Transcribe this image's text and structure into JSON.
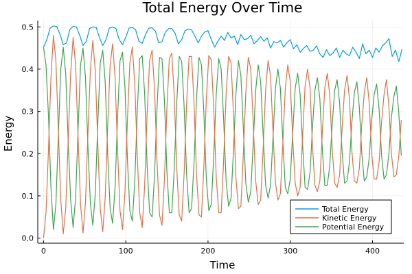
{
  "chart_data": {
    "type": "line",
    "title": "Total Energy Over Time",
    "xlabel": "Time",
    "ylabel": "Energy",
    "xlim": [
      -7,
      438
    ],
    "ylim": [
      -0.012,
      0.515
    ],
    "x_ticks": [
      0,
      100,
      200,
      300,
      400
    ],
    "x_tick_labels": [
      "0",
      "100",
      "200",
      "300",
      "400"
    ],
    "y_ticks": [
      0.0,
      0.1,
      0.2,
      0.3,
      0.4,
      0.5
    ],
    "y_tick_labels": [
      "0.0",
      "0.1",
      "0.2",
      "0.3",
      "0.4",
      "0.5"
    ],
    "grid": true,
    "legend_position": "bottom-right",
    "series": [
      {
        "name": "Total Energy",
        "color": "#009AFA",
        "x": [
          0,
          4,
          8,
          12,
          16,
          20,
          24,
          28,
          32,
          36,
          40,
          44,
          48,
          52,
          56,
          60,
          64,
          68,
          72,
          76,
          80,
          84,
          88,
          92,
          96,
          100,
          104,
          108,
          112,
          116,
          120,
          124,
          128,
          132,
          136,
          140,
          144,
          148,
          152,
          156,
          160,
          164,
          168,
          172,
          176,
          180,
          184,
          188,
          192,
          196,
          200,
          204,
          208,
          212,
          216,
          220,
          224,
          228,
          232,
          236,
          240,
          244,
          248,
          252,
          256,
          260,
          264,
          268,
          272,
          276,
          280,
          284,
          288,
          292,
          296,
          300,
          304,
          308,
          312,
          316,
          320,
          324,
          328,
          332,
          336,
          340,
          344,
          348,
          352,
          356,
          360,
          364,
          368,
          372,
          376,
          380,
          384,
          388,
          392,
          396,
          400,
          404,
          408,
          412,
          416,
          420,
          424,
          428,
          432,
          436
        ],
        "y": [
          0.452,
          0.47,
          0.497,
          0.502,
          0.501,
          0.483,
          0.458,
          0.462,
          0.494,
          0.501,
          0.5,
          0.48,
          0.456,
          0.466,
          0.496,
          0.5,
          0.499,
          0.475,
          0.456,
          0.47,
          0.497,
          0.5,
          0.496,
          0.47,
          0.458,
          0.476,
          0.497,
          0.499,
          0.493,
          0.466,
          0.461,
          0.482,
          0.497,
          0.498,
          0.49,
          0.462,
          0.465,
          0.487,
          0.496,
          0.496,
          0.485,
          0.46,
          0.47,
          0.491,
          0.495,
          0.493,
          0.478,
          0.462,
          0.478,
          0.488,
          0.491,
          0.47,
          0.452,
          0.466,
          0.478,
          0.468,
          0.487,
          0.474,
          0.478,
          0.458,
          0.482,
          0.47,
          0.472,
          0.48,
          0.46,
          0.468,
          0.477,
          0.466,
          0.474,
          0.45,
          0.465,
          0.462,
          0.468,
          0.452,
          0.463,
          0.47,
          0.448,
          0.458,
          0.44,
          0.449,
          0.456,
          0.442,
          0.445,
          0.455,
          0.436,
          0.428,
          0.446,
          0.432,
          0.438,
          0.45,
          0.428,
          0.445,
          0.436,
          0.432,
          0.452,
          0.44,
          0.425,
          0.46,
          0.436,
          0.445,
          0.428,
          0.45,
          0.44,
          0.455,
          0.462,
          0.472,
          0.43,
          0.445,
          0.418,
          0.448
        ]
      },
      {
        "name": "Kinetic Energy",
        "color": "#E26F46",
        "x": [
          0,
          3,
          6,
          9,
          12,
          15,
          18,
          21,
          24,
          27,
          30,
          33,
          36,
          39,
          42,
          45,
          48,
          51,
          54,
          57,
          60,
          63,
          66,
          69,
          72,
          75,
          78,
          81,
          84,
          87,
          90,
          93,
          96,
          99,
          102,
          105,
          108,
          111,
          114,
          117,
          120,
          123,
          126,
          129,
          132,
          135,
          138,
          141,
          144,
          147,
          150,
          153,
          156,
          159,
          162,
          165,
          168,
          171,
          174,
          177,
          180,
          183,
          186,
          189,
          192,
          195,
          198,
          201,
          204,
          207,
          210,
          213,
          216,
          219,
          222,
          225,
          228,
          231,
          234,
          237,
          240,
          243,
          246,
          249,
          252,
          255,
          258,
          261,
          264,
          267,
          270,
          273,
          276,
          279,
          282,
          285,
          288,
          291,
          294,
          297,
          300,
          303,
          306,
          309,
          312,
          315,
          318,
          321,
          324,
          327,
          330,
          333,
          336,
          339,
          342,
          345,
          348,
          351,
          354,
          357,
          360,
          363,
          366,
          369,
          372,
          375,
          378,
          381,
          384,
          387,
          390,
          393,
          396,
          399,
          402,
          405,
          408,
          411,
          414,
          417,
          420,
          423,
          426,
          429,
          432,
          435
        ],
        "y": [
          0.0,
          0.06,
          0.21,
          0.38,
          0.48,
          0.42,
          0.26,
          0.09,
          0.01,
          0.07,
          0.23,
          0.39,
          0.475,
          0.41,
          0.24,
          0.08,
          0.012,
          0.085,
          0.25,
          0.4,
          0.468,
          0.395,
          0.225,
          0.07,
          0.015,
          0.095,
          0.265,
          0.41,
          0.46,
          0.38,
          0.21,
          0.065,
          0.02,
          0.11,
          0.28,
          0.415,
          0.452,
          0.365,
          0.195,
          0.06,
          0.025,
          0.125,
          0.295,
          0.42,
          0.445,
          0.35,
          0.18,
          0.055,
          0.03,
          0.14,
          0.305,
          0.425,
          0.438,
          0.335,
          0.165,
          0.055,
          0.04,
          0.155,
          0.32,
          0.43,
          0.43,
          0.32,
          0.15,
          0.055,
          0.05,
          0.17,
          0.33,
          0.432,
          0.422,
          0.305,
          0.145,
          0.06,
          0.06,
          0.185,
          0.34,
          0.43,
          0.415,
          0.29,
          0.14,
          0.07,
          0.075,
          0.2,
          0.345,
          0.428,
          0.4,
          0.27,
          0.135,
          0.08,
          0.09,
          0.21,
          0.35,
          0.42,
          0.385,
          0.25,
          0.13,
          0.09,
          0.105,
          0.225,
          0.355,
          0.41,
          0.37,
          0.235,
          0.13,
          0.1,
          0.12,
          0.24,
          0.36,
          0.4,
          0.355,
          0.22,
          0.125,
          0.11,
          0.135,
          0.25,
          0.355,
          0.39,
          0.34,
          0.21,
          0.13,
          0.12,
          0.15,
          0.26,
          0.35,
          0.385,
          0.33,
          0.205,
          0.135,
          0.13,
          0.165,
          0.27,
          0.345,
          0.38,
          0.32,
          0.2,
          0.14,
          0.14,
          0.18,
          0.275,
          0.34,
          0.375,
          0.31,
          0.2,
          0.145,
          0.15,
          0.195,
          0.28
        ]
      },
      {
        "name": "Potential Energy",
        "color": "#3DA44D",
        "x": [
          0,
          3,
          6,
          9,
          12,
          15,
          18,
          21,
          24,
          27,
          30,
          33,
          36,
          39,
          42,
          45,
          48,
          51,
          54,
          57,
          60,
          63,
          66,
          69,
          72,
          75,
          78,
          81,
          84,
          87,
          90,
          93,
          96,
          99,
          102,
          105,
          108,
          111,
          114,
          117,
          120,
          123,
          126,
          129,
          132,
          135,
          138,
          141,
          144,
          147,
          150,
          153,
          156,
          159,
          162,
          165,
          168,
          171,
          174,
          177,
          180,
          183,
          186,
          189,
          192,
          195,
          198,
          201,
          204,
          207,
          210,
          213,
          216,
          219,
          222,
          225,
          228,
          231,
          234,
          237,
          240,
          243,
          246,
          249,
          252,
          255,
          258,
          261,
          264,
          267,
          270,
          273,
          276,
          279,
          282,
          285,
          288,
          291,
          294,
          297,
          300,
          303,
          306,
          309,
          312,
          315,
          318,
          321,
          324,
          327,
          330,
          333,
          336,
          339,
          342,
          345,
          348,
          351,
          354,
          357,
          360,
          363,
          366,
          369,
          372,
          375,
          378,
          381,
          384,
          387,
          390,
          393,
          396,
          399,
          402,
          405,
          408,
          411,
          414,
          417,
          420,
          423,
          426,
          429,
          432,
          435
        ],
        "y": [
          0.452,
          0.41,
          0.29,
          0.12,
          0.02,
          0.08,
          0.24,
          0.4,
          0.452,
          0.39,
          0.23,
          0.09,
          0.025,
          0.095,
          0.255,
          0.41,
          0.45,
          0.38,
          0.215,
          0.08,
          0.03,
          0.105,
          0.27,
          0.415,
          0.445,
          0.37,
          0.2,
          0.07,
          0.035,
          0.12,
          0.285,
          0.42,
          0.44,
          0.355,
          0.185,
          0.065,
          0.04,
          0.135,
          0.3,
          0.425,
          0.432,
          0.34,
          0.17,
          0.06,
          0.05,
          0.15,
          0.31,
          0.428,
          0.425,
          0.325,
          0.16,
          0.06,
          0.06,
          0.165,
          0.32,
          0.43,
          0.418,
          0.31,
          0.15,
          0.06,
          0.07,
          0.18,
          0.33,
          0.428,
          0.41,
          0.295,
          0.14,
          0.065,
          0.08,
          0.195,
          0.34,
          0.425,
          0.4,
          0.28,
          0.135,
          0.075,
          0.095,
          0.21,
          0.345,
          0.42,
          0.385,
          0.26,
          0.13,
          0.085,
          0.11,
          0.225,
          0.35,
          0.41,
          0.37,
          0.245,
          0.125,
          0.095,
          0.125,
          0.24,
          0.355,
          0.4,
          0.355,
          0.23,
          0.12,
          0.105,
          0.14,
          0.25,
          0.355,
          0.39,
          0.34,
          0.22,
          0.12,
          0.115,
          0.155,
          0.26,
          0.35,
          0.38,
          0.33,
          0.21,
          0.125,
          0.125,
          0.17,
          0.27,
          0.35,
          0.375,
          0.32,
          0.205,
          0.13,
          0.135,
          0.18,
          0.275,
          0.345,
          0.37,
          0.31,
          0.2,
          0.135,
          0.145,
          0.19,
          0.28,
          0.34,
          0.365,
          0.305,
          0.195,
          0.14,
          0.15,
          0.2,
          0.285,
          0.335,
          0.36,
          0.295,
          0.195
        ]
      }
    ]
  }
}
